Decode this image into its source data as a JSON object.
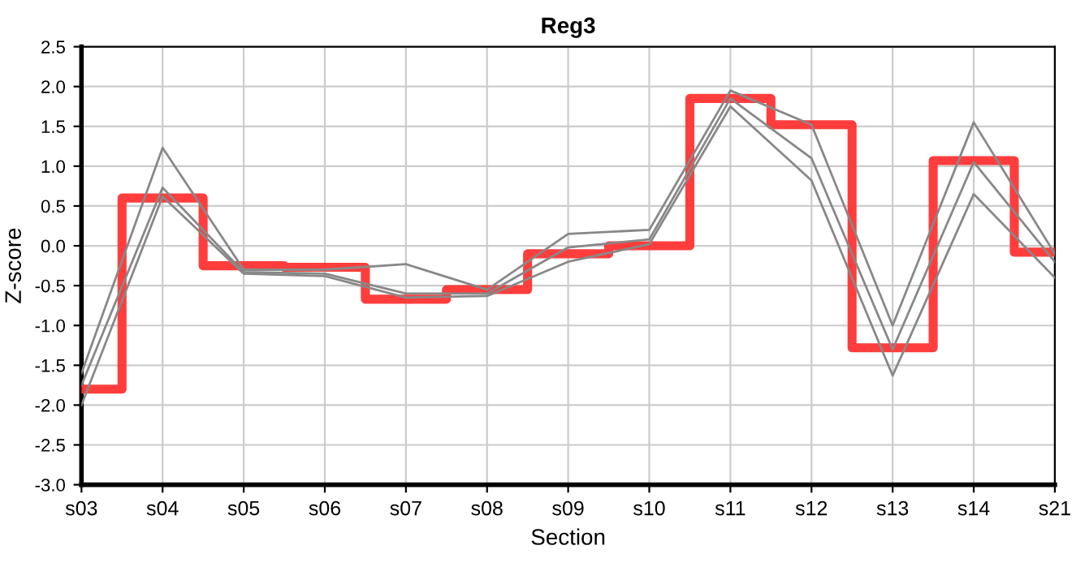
{
  "chart_data": {
    "type": "line",
    "title": "Reg3",
    "xlabel": "Section",
    "ylabel": "Z-score",
    "categories": [
      "s03",
      "s04",
      "s05",
      "s06",
      "s07",
      "s08",
      "s09",
      "s10",
      "s11",
      "s12",
      "s13",
      "s14",
      "s21"
    ],
    "series": [
      {
        "color": "#888888",
        "values": [
          -1.6,
          1.23,
          -0.3,
          -0.3,
          -0.23,
          -0.55,
          0.15,
          0.2,
          1.95,
          1.52,
          -1.0,
          1.55,
          -0.1
        ]
      },
      {
        "color": "#888888",
        "values": [
          -1.75,
          0.73,
          -0.33,
          -0.35,
          -0.6,
          -0.6,
          -0.02,
          0.08,
          1.85,
          1.1,
          -1.3,
          1.05,
          -0.2
        ]
      },
      {
        "color": "#888888",
        "values": [
          -2.0,
          0.62,
          -0.35,
          -0.38,
          -0.65,
          -0.63,
          -0.2,
          0.02,
          1.75,
          0.82,
          -1.63,
          0.65,
          -0.4
        ]
      },
      {
        "type": "step",
        "color": "#ff3333",
        "values": [
          -1.8,
          0.6,
          -0.25,
          -0.27,
          -0.67,
          -0.55,
          -0.1,
          0.0,
          1.85,
          1.52,
          -1.28,
          1.07,
          -0.08
        ]
      }
    ],
    "ylim": [
      -3.0,
      2.5
    ],
    "yticks": [
      {
        "value": -3,
        "label": "-3.0"
      },
      {
        "value": -2.5,
        "label": "-2.5"
      },
      {
        "value": -2,
        "label": "-2.0"
      },
      {
        "value": -1.5,
        "label": "-1.5"
      },
      {
        "value": -1,
        "label": "-1.0"
      },
      {
        "value": -0.5,
        "label": "-0.5"
      },
      {
        "value": 0,
        "label": "0.0"
      },
      {
        "value": 0.5,
        "label": "0.5"
      },
      {
        "value": 1,
        "label": "1.0"
      },
      {
        "value": 1.5,
        "label": "1.5"
      },
      {
        "value": 2,
        "label": "2.0"
      },
      {
        "value": 2.5,
        "label": "2.5"
      }
    ],
    "grid": true
  }
}
